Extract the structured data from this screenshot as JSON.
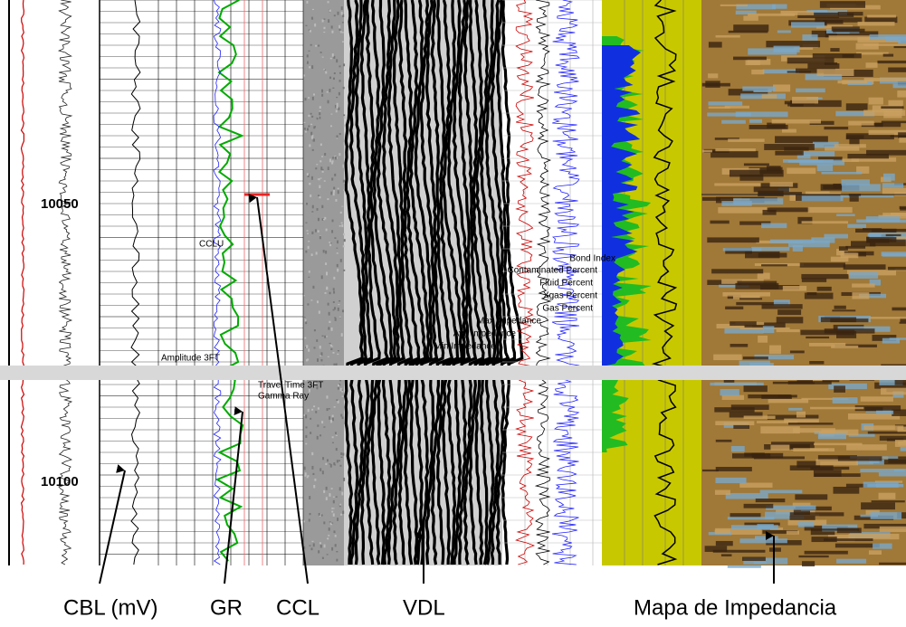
{
  "depth_labels": [
    "10050",
    "10100"
  ],
  "curve_labels": {
    "ccl": "CCLU",
    "amplitude": "Amplitude 3FT",
    "travel_time": "Travel Time 3FT",
    "gamma_ray": "Gamma Ray",
    "bond_index": "Bond Index",
    "contaminated": "Contaminated Percent",
    "fluid": "Fluid Percent",
    "xgas": "Xgas Percent",
    "gas": "Gas Percent",
    "max_imp": "Max Impedance",
    "avg_imp": "Avg Impedance",
    "min_imp": "Min Impedance"
  },
  "captions": {
    "cbl": "CBL (mV)",
    "gr": "GR",
    "ccl": "CCL",
    "vdl": "VDL",
    "impedance": "Mapa de Impedancia"
  }
}
